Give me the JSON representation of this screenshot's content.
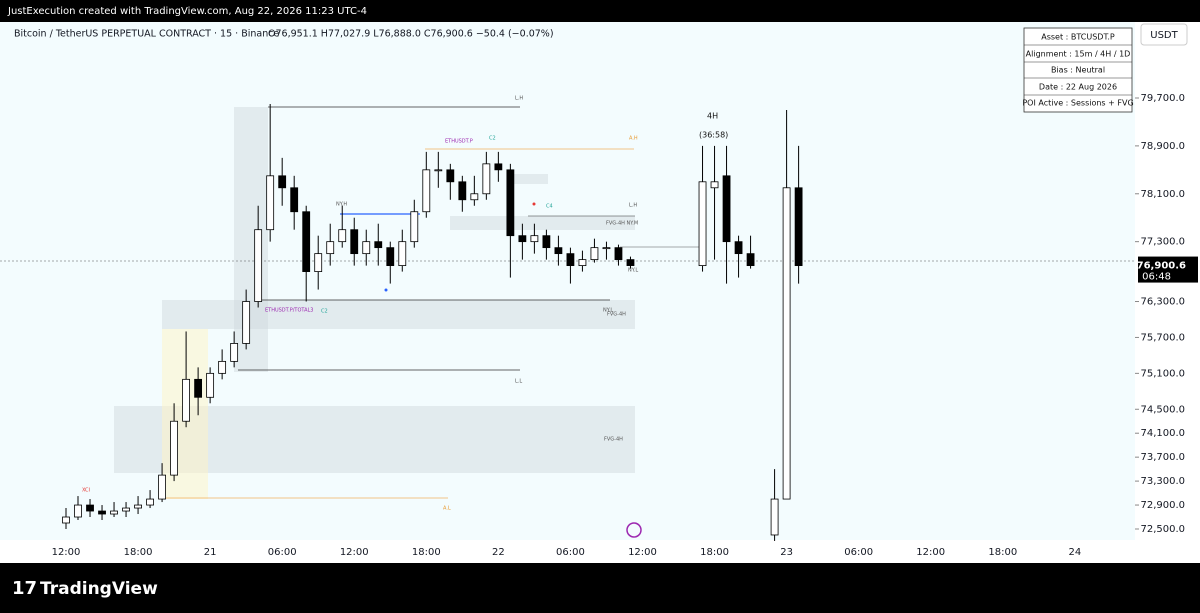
{
  "header": {
    "attribution": "JustExecution created with TradingView.com, Aug 22, 2026 11:23 UTC-4",
    "symbol": "Bitcoin / TetherUS PERPETUAL CONTRACT · 15 · Binance",
    "ohlc": "O76,951.1 H77,027.9 L76,888.0 C76,900.6 −50.4 (−0.07%)"
  },
  "currency_button": "USDT",
  "info_box": [
    "Asset : BTCUSDT.P",
    "Alignment : 15m / 4H / 1D",
    "Bias : Neutral",
    "Date : 22 Aug 2026",
    "POI Active : Sessions + FVG"
  ],
  "annotations": [
    "L.H",
    "A.H",
    "ETHUSDT.P",
    "C2",
    "NY.H",
    "C4",
    "FVG-4H NY.M",
    "L.H",
    "NY.L",
    "ETHUSDT.P/TOTAL3",
    "C2",
    "NY.L",
    "FVG-4H",
    "L.L",
    "FVG-4H",
    "A.L",
    "XCI",
    "4H",
    "(36:58)"
  ],
  "footer": "TradingView",
  "chart_data": {
    "type": "candlestick",
    "categories": [
      "12:00",
      null,
      null,
      null,
      null,
      null,
      "18:00",
      null,
      null,
      null,
      null,
      null,
      "21",
      null,
      null,
      null,
      null,
      null,
      "06:00",
      null,
      null,
      null,
      null,
      null,
      "12:00",
      null,
      null,
      null,
      null,
      null,
      "18:00",
      null,
      null,
      null,
      null,
      null,
      "22",
      null,
      null,
      null,
      null,
      null,
      "06:00",
      null,
      null,
      null,
      null,
      null,
      "12:00",
      null,
      null,
      null,
      null,
      null,
      "18:00",
      null,
      null,
      null,
      null,
      null,
      "23",
      null,
      null,
      null,
      null,
      null,
      "06:00",
      null,
      null,
      null,
      null,
      null,
      "12:00",
      null,
      null,
      null,
      null,
      null,
      "18:00",
      null,
      null,
      null,
      null,
      null,
      "24"
    ],
    "open": [
      72600,
      72700,
      72900,
      72800,
      72750,
      72800,
      72850,
      72900,
      73000,
      73400,
      74300,
      75000,
      74700,
      75100,
      75300,
      75600,
      76300,
      77500,
      78400,
      78200,
      77800,
      76800,
      77100,
      77300,
      77500,
      77100,
      77300,
      77200,
      76900,
      77300,
      77800,
      78500,
      78500,
      78300,
      78000,
      78100,
      78600,
      78500,
      77400,
      77300,
      77400,
      77200,
      77100,
      76900,
      77000,
      77200,
      77200,
      77000,
      null,
      null,
      null,
      null,
      null,
      76900,
      78200,
      78400,
      77300,
      77100,
      null,
      72400,
      73000,
      78200,
      null,
      null,
      null,
      null,
      null,
      null,
      null,
      null,
      null,
      null,
      null,
      null,
      null,
      null,
      null,
      null,
      null,
      null,
      null,
      null,
      null,
      null,
      null
    ],
    "high": [
      72850,
      73050,
      73000,
      72900,
      72950,
      72950,
      73050,
      73150,
      73600,
      74600,
      75800,
      75200,
      75200,
      75500,
      75800,
      76500,
      77900,
      79600,
      78700,
      78400,
      77900,
      77400,
      77600,
      77900,
      77700,
      77500,
      77600,
      77300,
      77500,
      78000,
      78800,
      78800,
      78600,
      78400,
      78400,
      78800,
      78800,
      78600,
      77600,
      77600,
      77500,
      77400,
      77200,
      77150,
      77350,
      77300,
      77250,
      77050,
      null,
      null,
      null,
      null,
      null,
      78900,
      78900,
      78900,
      77400,
      77400,
      null,
      73500,
      79500,
      78900,
      null,
      null,
      null,
      null,
      null,
      null,
      null,
      null,
      null,
      null,
      null,
      null,
      null,
      null,
      null,
      null,
      null,
      null,
      null,
      null,
      null,
      null,
      null
    ],
    "low": [
      72500,
      72650,
      72700,
      72650,
      72700,
      72700,
      72750,
      72850,
      72950,
      73300,
      74200,
      74400,
      74600,
      75000,
      75200,
      75500,
      76200,
      77300,
      77900,
      77500,
      76300,
      76500,
      76900,
      77200,
      76900,
      76900,
      76900,
      76600,
      76800,
      77200,
      77700,
      78200,
      78000,
      77800,
      77900,
      78000,
      78300,
      76700,
      77000,
      77100,
      77000,
      76900,
      76600,
      76800,
      76950,
      77000,
      76900,
      76850,
      null,
      null,
      null,
      null,
      null,
      76800,
      77000,
      76600,
      76700,
      76850,
      null,
      72300,
      73000,
      76600,
      null,
      null,
      null,
      null,
      null,
      null,
      null,
      null,
      null,
      null,
      null,
      null,
      null,
      null,
      null,
      null,
      null,
      null,
      null,
      null,
      null,
      null,
      null
    ],
    "close": [
      72700,
      72900,
      72800,
      72750,
      72800,
      72850,
      72900,
      73000,
      73400,
      74300,
      75000,
      74700,
      75100,
      75300,
      75600,
      76300,
      77500,
      78400,
      78200,
      77800,
      76800,
      77100,
      77300,
      77500,
      77100,
      77300,
      77200,
      76900,
      77300,
      77800,
      78500,
      78500,
      78300,
      78000,
      78100,
      78600,
      78500,
      77400,
      77300,
      77400,
      77200,
      77100,
      76900,
      77000,
      77200,
      77200,
      77000,
      76900.6,
      null,
      null,
      null,
      null,
      null,
      78300,
      78300,
      77300,
      77100,
      76900,
      null,
      73000,
      78200,
      76900,
      null,
      null,
      null,
      null,
      null,
      null,
      null,
      null,
      null,
      null,
      null,
      null,
      null,
      null,
      null,
      null,
      null,
      null,
      null,
      null,
      null,
      null,
      null
    ],
    "up_color": "#ffffff",
    "down_color": "#000000",
    "ylim": [
      72316,
      80836
    ],
    "yticks": [
      {
        "value": 72500,
        "label": "72,500.0"
      },
      {
        "value": 72900,
        "label": "72,900.0"
      },
      {
        "value": 73300,
        "label": "73,300.0"
      },
      {
        "value": 73700,
        "label": "73,700.0"
      },
      {
        "value": 74100,
        "label": "74,100.0"
      },
      {
        "value": 74500,
        "label": "74,500.0"
      },
      {
        "value": 75100,
        "label": "75,100.0"
      },
      {
        "value": 75700,
        "label": "75,700.0"
      },
      {
        "value": 76300,
        "label": "76,300.0"
      },
      {
        "value": 77300,
        "label": "77,300.0"
      },
      {
        "value": 78100,
        "label": "78,100.0"
      },
      {
        "value": 78900,
        "label": "78,900.0"
      },
      {
        "value": 79700,
        "label": "79,700.0"
      }
    ],
    "last_price": {
      "value": 76900.6,
      "label": "76,900.6"
    },
    "countdown": "06:48"
  }
}
